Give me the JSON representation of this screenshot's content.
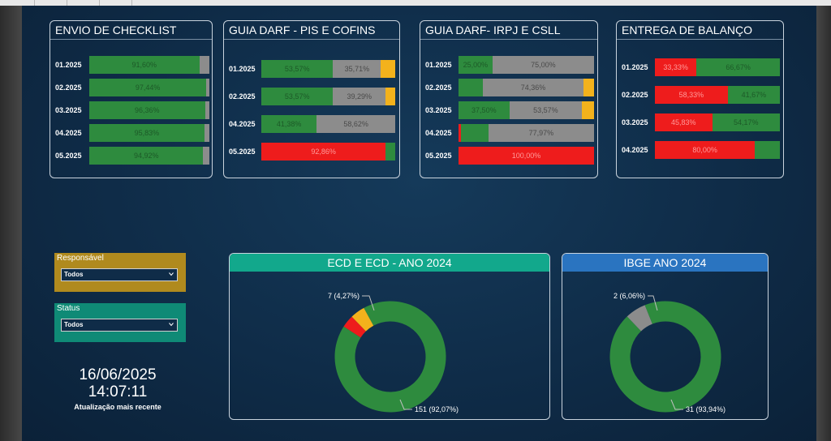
{
  "colors": {
    "green": "#2e8b3e",
    "gray": "#8c8c8c",
    "yellow": "#f3b21c",
    "red": "#ee1c1c",
    "label_on_green": "#1d5a28",
    "label_on_gray": "#4a4a4a",
    "label_on_red": "#ff9a9a"
  },
  "chart_data": [
    {
      "type": "bar",
      "stacked": true,
      "orientation": "horizontal",
      "title": "ENVIO DE CHECKLIST",
      "categories": [
        "01.2025",
        "02.2025",
        "03.2025",
        "04.2025",
        "05.2025"
      ],
      "rows": [
        {
          "category": "01.2025",
          "segments": [
            {
              "color": "green",
              "value": 91.6,
              "label": "91,60%"
            },
            {
              "color": "gray",
              "value": 8.4,
              "label": ""
            }
          ]
        },
        {
          "category": "02.2025",
          "segments": [
            {
              "color": "green",
              "value": 97.44,
              "label": "97,44%"
            },
            {
              "color": "gray",
              "value": 2.56,
              "label": ""
            }
          ]
        },
        {
          "category": "03.2025",
          "segments": [
            {
              "color": "green",
              "value": 96.36,
              "label": "96,36%"
            },
            {
              "color": "gray",
              "value": 3.64,
              "label": ""
            }
          ]
        },
        {
          "category": "04.2025",
          "segments": [
            {
              "color": "green",
              "value": 95.83,
              "label": "95,83%"
            },
            {
              "color": "gray",
              "value": 4.17,
              "label": ""
            }
          ]
        },
        {
          "category": "05.2025",
          "segments": [
            {
              "color": "green",
              "value": 94.92,
              "label": "94,92%"
            },
            {
              "color": "gray",
              "value": 5.08,
              "label": ""
            }
          ]
        }
      ]
    },
    {
      "type": "bar",
      "stacked": true,
      "orientation": "horizontal",
      "title": "GUIA DARF - PIS E COFINS",
      "categories": [
        "01.2025",
        "02.2025",
        "04.2025",
        "05.2025"
      ],
      "rows": [
        {
          "category": "01.2025",
          "segments": [
            {
              "color": "green",
              "value": 53.57,
              "label": "53,57%"
            },
            {
              "color": "gray",
              "value": 35.71,
              "label": "35,71%"
            },
            {
              "color": "yellow",
              "value": 10.72,
              "label": ""
            }
          ]
        },
        {
          "category": "02.2025",
          "segments": [
            {
              "color": "green",
              "value": 53.57,
              "label": "53,57%"
            },
            {
              "color": "gray",
              "value": 39.29,
              "label": "39,29%"
            },
            {
              "color": "yellow",
              "value": 7.14,
              "label": ""
            }
          ]
        },
        {
          "category": "04.2025",
          "segments": [
            {
              "color": "green",
              "value": 41.38,
              "label": "41,38%"
            },
            {
              "color": "gray",
              "value": 58.62,
              "label": "58,62%"
            }
          ]
        },
        {
          "category": "05.2025",
          "segments": [
            {
              "color": "red",
              "value": 92.86,
              "label": "92,86%"
            },
            {
              "color": "green",
              "value": 7.14,
              "label": ""
            }
          ]
        }
      ]
    },
    {
      "type": "bar",
      "stacked": true,
      "orientation": "horizontal",
      "title": "GUIA DARF- IRPJ E CSLL",
      "categories": [
        "01.2025",
        "02.2025",
        "03.2025",
        "04.2025",
        "05.2025"
      ],
      "rows": [
        {
          "category": "01.2025",
          "segments": [
            {
              "color": "green",
              "value": 25.0,
              "label": "25,00%"
            },
            {
              "color": "gray",
              "value": 75.0,
              "label": "75,00%"
            }
          ]
        },
        {
          "category": "02.2025",
          "segments": [
            {
              "color": "green",
              "value": 17.95,
              "label": ""
            },
            {
              "color": "gray",
              "value": 74.36,
              "label": "74,36%"
            },
            {
              "color": "yellow",
              "value": 7.69,
              "label": ""
            }
          ]
        },
        {
          "category": "03.2025",
          "segments": [
            {
              "color": "green",
              "value": 37.5,
              "label": "37,50%"
            },
            {
              "color": "gray",
              "value": 53.57,
              "label": "53,57%"
            },
            {
              "color": "yellow",
              "value": 8.93,
              "label": ""
            }
          ]
        },
        {
          "category": "04.2025",
          "segments": [
            {
              "color": "red",
              "value": 1.69,
              "label": ""
            },
            {
              "color": "green",
              "value": 20.34,
              "label": ""
            },
            {
              "color": "gray",
              "value": 77.97,
              "label": "77,97%"
            }
          ]
        },
        {
          "category": "05.2025",
          "segments": [
            {
              "color": "red",
              "value": 100.0,
              "label": "100,00%"
            }
          ]
        }
      ]
    },
    {
      "type": "bar",
      "stacked": true,
      "orientation": "horizontal",
      "title": "ENTREGA DE BALANÇO",
      "categories": [
        "01.2025",
        "02.2025",
        "03.2025",
        "04.2025"
      ],
      "rows": [
        {
          "category": "01.2025",
          "segments": [
            {
              "color": "red",
              "value": 33.33,
              "label": "33,33%"
            },
            {
              "color": "green",
              "value": 66.67,
              "label": "66,67%"
            }
          ]
        },
        {
          "category": "02.2025",
          "segments": [
            {
              "color": "red",
              "value": 58.33,
              "label": "58,33%"
            },
            {
              "color": "green",
              "value": 41.67,
              "label": "41,67%"
            }
          ]
        },
        {
          "category": "03.2025",
          "segments": [
            {
              "color": "red",
              "value": 45.83,
              "label": "45,83%"
            },
            {
              "color": "green",
              "value": 54.17,
              "label": "54,17%"
            }
          ]
        },
        {
          "category": "04.2025",
          "segments": [
            {
              "color": "red",
              "value": 80.0,
              "label": "80,00%"
            },
            {
              "color": "green",
              "value": 20.0,
              "label": ""
            }
          ]
        }
      ]
    },
    {
      "type": "pie",
      "donut": true,
      "title": "ECD E ECD - ANO 2024",
      "header_color": "#12a88c",
      "slices": [
        {
          "color": "green",
          "value": 151,
          "label": "151 (92,07%)"
        },
        {
          "color": "red",
          "value": 6,
          "label": ""
        },
        {
          "color": "yellow",
          "value": 7,
          "label": "7 (4,27%)"
        }
      ]
    },
    {
      "type": "pie",
      "donut": true,
      "title": "IBGE ANO 2024",
      "header_color": "#2a74c0",
      "slices": [
        {
          "color": "green",
          "value": 31,
          "label": "31 (93,94%)"
        },
        {
          "color": "gray",
          "value": 2,
          "label": "2 (6,06%)"
        }
      ]
    }
  ],
  "filters": {
    "responsavel": {
      "label": "Responsável",
      "value": "Todos",
      "color": "#b08a1e"
    },
    "status": {
      "label": "Status",
      "value": "Todos",
      "color": "#0f8a76"
    }
  },
  "refresh": {
    "date": "16/06/2025",
    "time": "14:07:11",
    "caption": "Atualização mais recente"
  }
}
